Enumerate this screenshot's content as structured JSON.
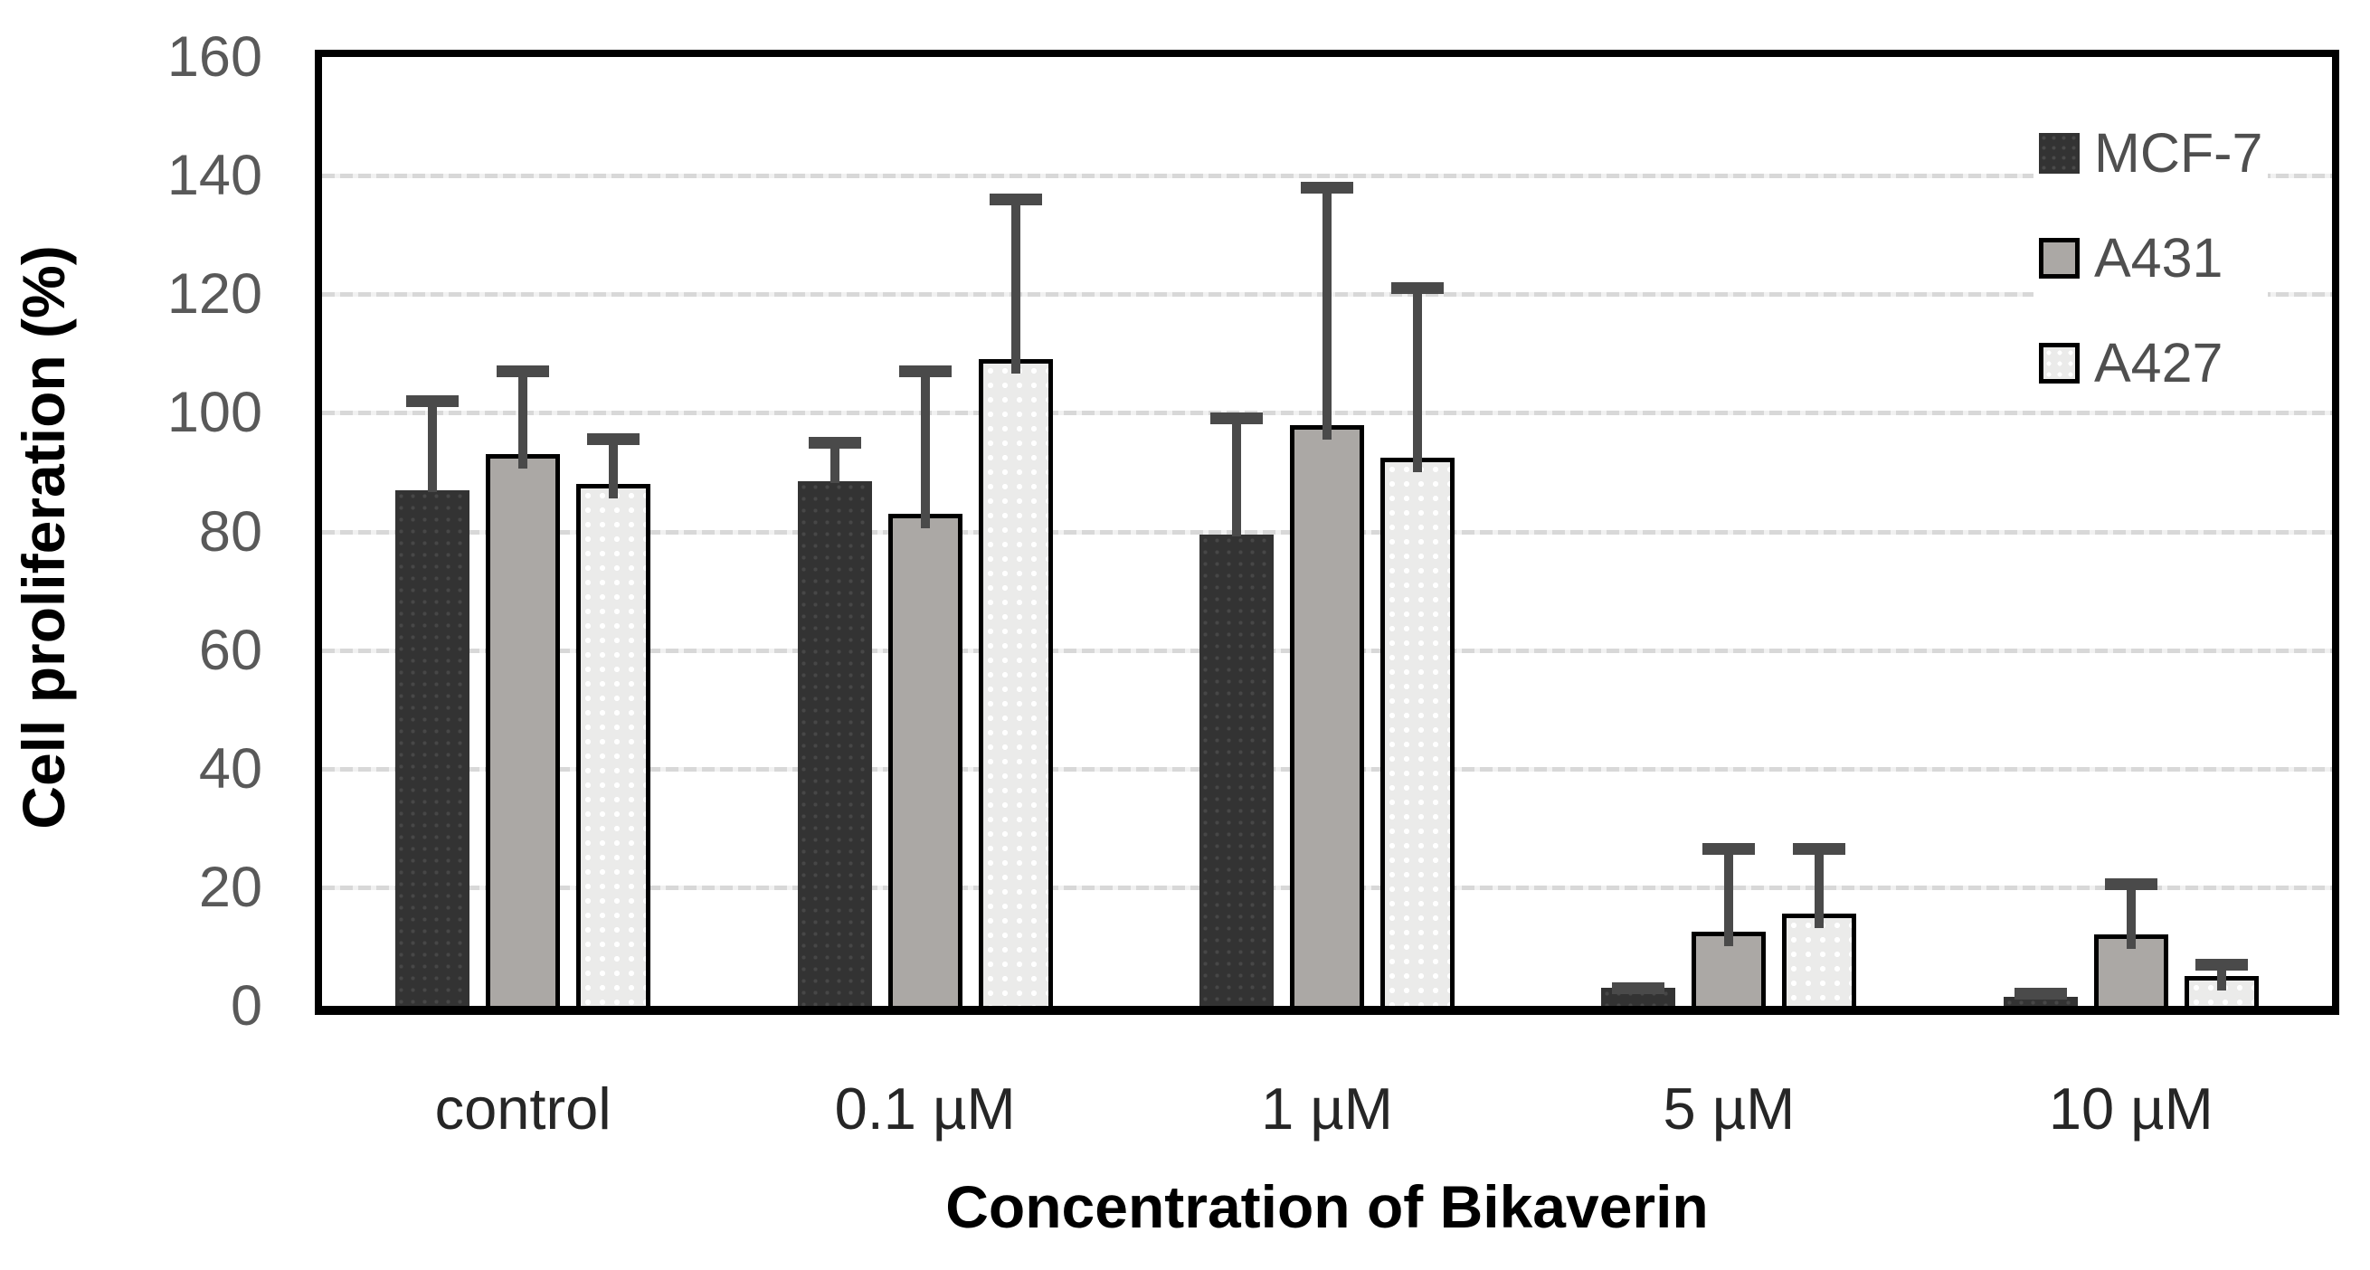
{
  "chart_data": {
    "type": "bar",
    "title": "",
    "xlabel": "Concentration of Bikaverin",
    "ylabel": "Cell proliferation (%)",
    "categories": [
      "control",
      "0.1 µM",
      "1 µM",
      "5 µM",
      "10 µM"
    ],
    "yticks": [
      0,
      20,
      40,
      60,
      80,
      100,
      120,
      140,
      160
    ],
    "ylim": [
      0,
      160
    ],
    "grid": true,
    "legend_position": "top-right",
    "series": [
      {
        "name": "MCF-7",
        "values": [
          87,
          88.5,
          79.5,
          3,
          1.5
        ],
        "errors": [
          16,
          7.5,
          20.5,
          1,
          1.5
        ],
        "color": "#333333",
        "pattern": "dark-dots",
        "border_color": "#333333"
      },
      {
        "name": "A431",
        "values": [
          93,
          83,
          98,
          12.5,
          12
        ],
        "errors": [
          15,
          25,
          41,
          15,
          9.5
        ],
        "color": "#aba8a5",
        "pattern": "solid",
        "border_color": "#000000"
      },
      {
        "name": "A427",
        "values": [
          88,
          109,
          92.5,
          15.5,
          5
        ],
        "errors": [
          8.5,
          28,
          29.5,
          12,
          3
        ],
        "color": "#ebebea",
        "pattern": "light-dots",
        "border_color": "#000000"
      }
    ],
    "error_bar_color": "#4a4a4a",
    "gridline_color": "#d8d8d8",
    "axis_frame_color": "#000000",
    "tick_label_color": "#595959",
    "category_label_color": "#262626",
    "axis_title_color": "#000000"
  }
}
